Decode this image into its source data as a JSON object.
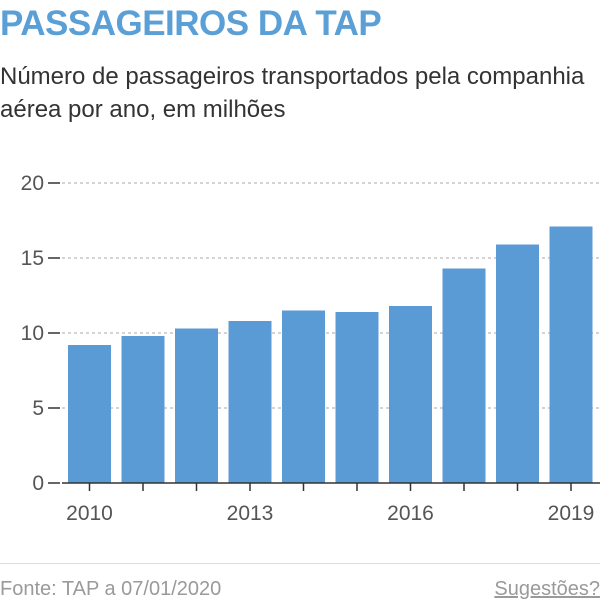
{
  "title": "PASSAGEIROS DA TAP",
  "subtitle": "Número de passageiros transportados pela companhia aérea por ano, em milhões",
  "footer": {
    "source": "Fonte: TAP a 07/01/2020",
    "suggestions_link": "Sugestões?"
  },
  "colors": {
    "bar": "#5b9bd5",
    "title": "#5a9fd6",
    "grid": "#aaaaaa",
    "axis": "#333333"
  },
  "chart_data": {
    "type": "bar",
    "categories": [
      "2010",
      "2011",
      "2012",
      "2013",
      "2014",
      "2015",
      "2016",
      "2017",
      "2018",
      "2019"
    ],
    "values": [
      9.2,
      9.8,
      10.3,
      10.8,
      11.5,
      11.4,
      11.8,
      14.3,
      15.9,
      17.1
    ],
    "x_tick_labels": [
      "2010",
      "2013",
      "2016",
      "2019"
    ],
    "y_ticks": [
      "0",
      "5",
      "10",
      "15",
      "20"
    ],
    "ylim": [
      0,
      20
    ],
    "grid": "horizontal dashed"
  }
}
